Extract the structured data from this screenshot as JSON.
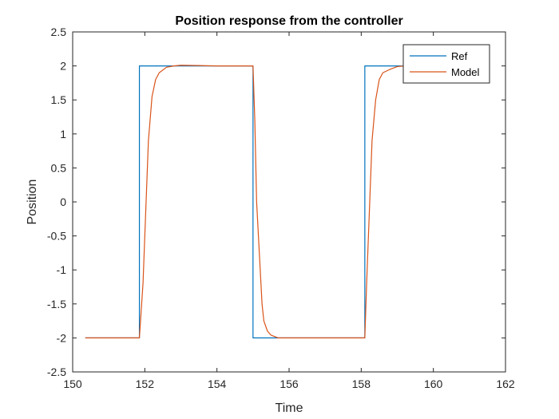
{
  "chart_data": {
    "type": "line",
    "title": "Position response from the controller",
    "xlabel": "Time",
    "ylabel": "Position",
    "xlim": [
      150,
      162
    ],
    "ylim": [
      -2.5,
      2.5
    ],
    "xticks": [
      150,
      152,
      154,
      156,
      158,
      160,
      162
    ],
    "yticks": [
      -2.5,
      -2,
      -1.5,
      -1,
      -0.5,
      0,
      0.5,
      1,
      1.5,
      2,
      2.5
    ],
    "grid": false,
    "legend_position": "top-right",
    "series": [
      {
        "name": "Ref",
        "color": "#0072BD",
        "x": [
          150.35,
          151.85,
          151.85,
          155.0,
          155.0,
          158.1,
          158.1,
          159.2
        ],
        "y": [
          -2,
          -2,
          2,
          2,
          -2,
          -2,
          2,
          2
        ]
      },
      {
        "name": "Model",
        "color": "#D95319",
        "x": [
          150.35,
          151.85,
          151.95,
          152.05,
          152.1,
          152.2,
          152.3,
          152.4,
          152.6,
          152.8,
          153.0,
          154.0,
          155.0,
          155.05,
          155.1,
          155.2,
          155.25,
          155.3,
          155.4,
          155.5,
          155.7,
          156.0,
          158.1,
          158.15,
          158.25,
          158.3,
          158.4,
          158.5,
          158.6,
          158.8,
          159.0,
          159.2
        ],
        "y": [
          -2,
          -2,
          -1.2,
          0.2,
          0.9,
          1.55,
          1.8,
          1.9,
          1.98,
          2.0,
          2.01,
          2.0,
          2.0,
          1.2,
          0.0,
          -1.0,
          -1.5,
          -1.75,
          -1.9,
          -1.96,
          -2.0,
          -2.0,
          -2.0,
          -1.2,
          0.2,
          0.9,
          1.5,
          1.8,
          1.9,
          1.95,
          1.99,
          2.0
        ]
      }
    ]
  }
}
